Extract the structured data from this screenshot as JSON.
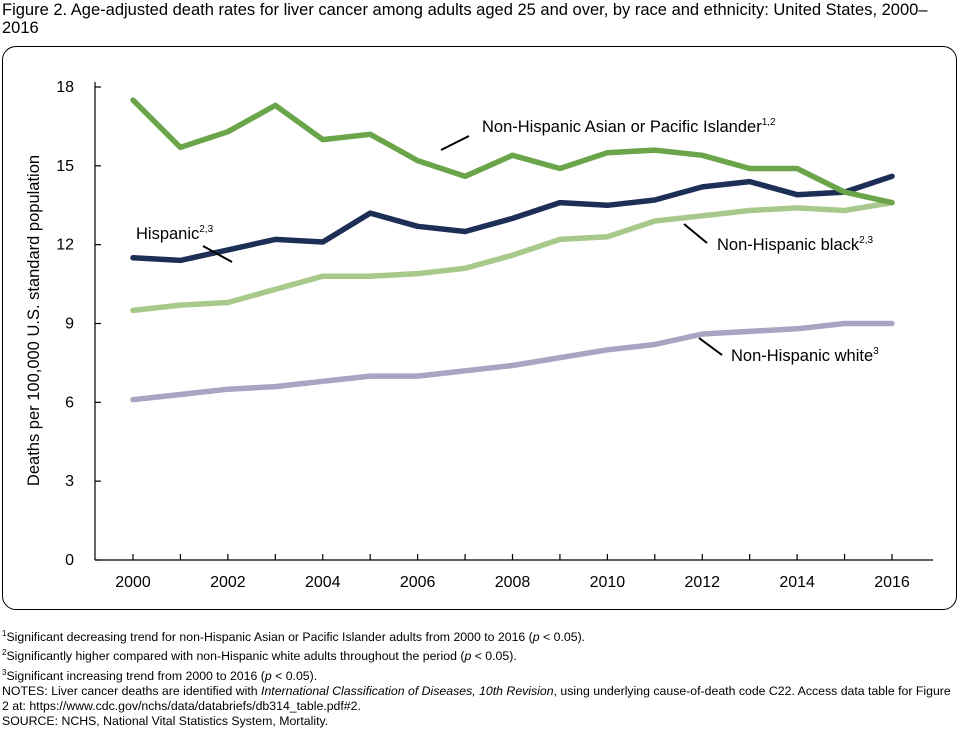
{
  "figure_title": "Figure 2. Age-adjusted death rates for liver cancer among adults aged 25 and over, by race and ethnicity: United States, 2000–2016",
  "chart_data": {
    "type": "line",
    "title": "Figure 2. Age-adjusted death rates for liver cancer among adults aged 25 and over, by race and ethnicity: United States, 2000–2016",
    "xlabel": "",
    "ylabel": "Deaths per 100,000 U.S. standard population",
    "ylim": [
      0,
      18
    ],
    "xlim": [
      2000,
      2016
    ],
    "yticks": [
      "0",
      "3",
      "6",
      "9",
      "12",
      "15",
      "18"
    ],
    "xticks": [
      "2000",
      "2002",
      "2004",
      "2006",
      "2008",
      "2010",
      "2012",
      "2014",
      "2016"
    ],
    "grid": false,
    "x": [
      2000,
      2001,
      2002,
      2003,
      2004,
      2005,
      2006,
      2007,
      2008,
      2009,
      2010,
      2011,
      2012,
      2013,
      2014,
      2015,
      2016
    ],
    "series": [
      {
        "name": "Non-Hispanic Asian or Pacific Islander",
        "superscript": "1,2",
        "color": "#6aa54a",
        "values": [
          17.5,
          15.7,
          16.3,
          17.3,
          16.0,
          16.2,
          15.2,
          14.6,
          15.4,
          14.9,
          15.5,
          15.6,
          15.4,
          14.9,
          14.9,
          14.0,
          13.6
        ]
      },
      {
        "name": "Hispanic",
        "superscript": "2,3",
        "color": "#1e2f57",
        "values": [
          11.5,
          11.4,
          11.8,
          12.2,
          12.1,
          13.2,
          12.7,
          12.5,
          13.0,
          13.6,
          13.5,
          13.7,
          14.2,
          14.4,
          13.9,
          14.0,
          14.6
        ]
      },
      {
        "name": "Non-Hispanic black",
        "superscript": "2,3",
        "color": "#a9c98c",
        "values": [
          9.5,
          9.7,
          9.8,
          10.3,
          10.8,
          10.8,
          10.9,
          11.1,
          11.6,
          12.2,
          12.3,
          12.9,
          13.1,
          13.3,
          13.4,
          13.3,
          13.6
        ]
      },
      {
        "name": "Non-Hispanic white",
        "superscript": "3",
        "color": "#a9a4c2",
        "values": [
          6.1,
          6.3,
          6.5,
          6.6,
          6.8,
          7.0,
          7.0,
          7.2,
          7.4,
          7.7,
          8.0,
          8.2,
          8.6,
          8.7,
          8.8,
          9.0,
          9.0
        ]
      }
    ]
  },
  "footnotes": {
    "fn1": "Significant decreasing trend for non-Hispanic Asian or Pacific Islander adults from 2000 to 2016 (",
    "fn1_p": "p",
    "fn1_end": " < 0.05).",
    "fn2": "Significantly higher compared with non-Hispanic white adults throughout the period (",
    "fn2_p": "p",
    "fn2_end": " < 0.05).",
    "fn3": "Significant increasing trend from 2000 to 2016 (",
    "fn3_p": "p",
    "fn3_end": " < 0.05).",
    "notes_a": "NOTES: Liver cancer deaths are identified with ",
    "notes_italic": "International Classification of Diseases, 10th Revision",
    "notes_b": ", using underlying cause-of-death code C22. Access data table for Figure 2 at: https://www.cdc.gov/nchs/data/databriefs/db314_table.pdf#2.",
    "source": "SOURCE: NCHS, National Vital Statistics System, Mortality."
  }
}
